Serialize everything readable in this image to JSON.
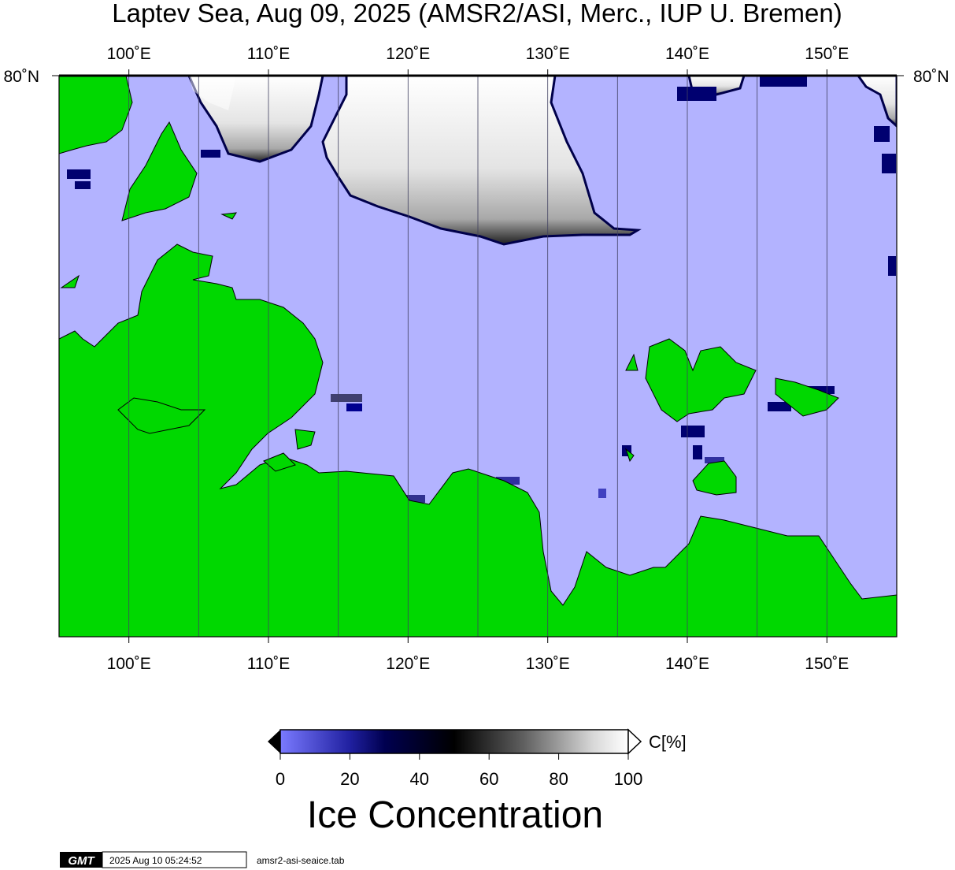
{
  "title": "Laptev Sea, Aug 09, 2025 (AMSR2/ASI, Merc., IUP U. Bremen)",
  "top_lon_labels": [
    "100˚E",
    "110˚E",
    "120˚E",
    "130˚E",
    "140˚E",
    "150˚E"
  ],
  "bottom_lon_labels": [
    "100˚E",
    "110˚E",
    "120˚E",
    "130˚E",
    "140˚E",
    "150˚E"
  ],
  "lat_label_left": "80˚N",
  "lat_label_right": "80˚N",
  "colorbar": {
    "unit_label": "C[%]",
    "ticks": [
      "0",
      "20",
      "40",
      "60",
      "80",
      "100"
    ],
    "title": "Ice Concentration"
  },
  "footer": {
    "logo_text": "GMT",
    "timestamp": "2025 Aug 10 05:24:52",
    "filename": "amsr2-asi-seaice.tab"
  },
  "colors": {
    "open_water": "#b3b3ff",
    "land": "#00d800",
    "ice_low": "#7070ff",
    "ice_mid": "#000060",
    "ice_high": "#ffffff"
  }
}
